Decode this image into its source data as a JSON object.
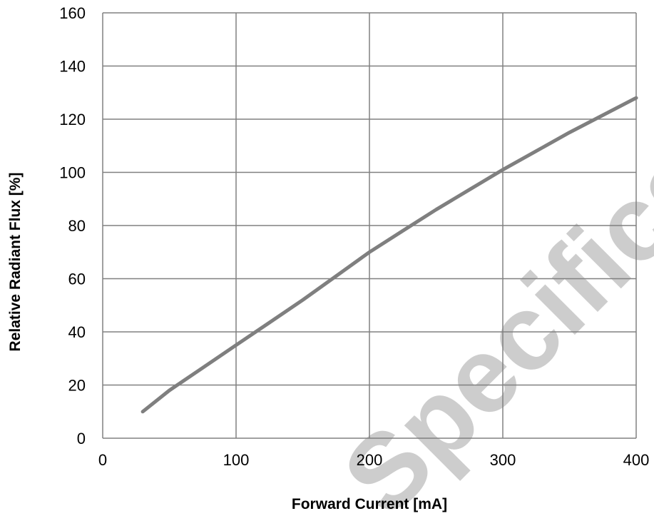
{
  "chart_data": {
    "type": "line",
    "title": "",
    "xlabel": "Forward Current [mA]",
    "ylabel": "Relative Radiant Flux [%]",
    "xlim": [
      0,
      400
    ],
    "ylim": [
      0,
      160
    ],
    "xticks": [
      0,
      100,
      200,
      300,
      400
    ],
    "yticks": [
      0,
      20,
      40,
      60,
      80,
      100,
      120,
      140,
      160
    ],
    "grid": true,
    "legend": "none",
    "series": [
      {
        "color": "#7f7f7f",
        "x": [
          30,
          50,
          75,
          100,
          125,
          150,
          175,
          200,
          225,
          250,
          275,
          300,
          325,
          350,
          375,
          400
        ],
        "y": [
          10,
          18,
          26.5,
          35,
          43.5,
          52,
          61,
          70,
          78,
          86,
          93.5,
          101,
          108,
          115,
          121.5,
          128
        ]
      }
    ]
  },
  "watermark": {
    "text": "Specification",
    "color": "#c8c8c8"
  }
}
